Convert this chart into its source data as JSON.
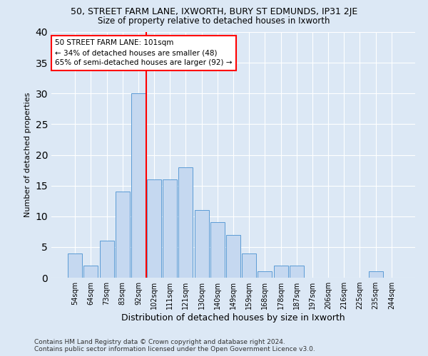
{
  "title_line1": "50, STREET FARM LANE, IXWORTH, BURY ST EDMUNDS, IP31 2JE",
  "title_line2": "Size of property relative to detached houses in Ixworth",
  "xlabel": "Distribution of detached houses by size in Ixworth",
  "ylabel": "Number of detached properties",
  "footnote": "Contains HM Land Registry data © Crown copyright and database right 2024.\nContains public sector information licensed under the Open Government Licence v3.0.",
  "categories": [
    "54sqm",
    "64sqm",
    "73sqm",
    "83sqm",
    "92sqm",
    "102sqm",
    "111sqm",
    "121sqm",
    "130sqm",
    "140sqm",
    "149sqm",
    "159sqm",
    "168sqm",
    "178sqm",
    "187sqm",
    "197sqm",
    "206sqm",
    "216sqm",
    "225sqm",
    "235sqm",
    "244sqm"
  ],
  "values": [
    4,
    2,
    6,
    14,
    30,
    16,
    16,
    18,
    11,
    9,
    7,
    4,
    1,
    2,
    2,
    0,
    0,
    0,
    0,
    1,
    0
  ],
  "bar_color": "#c5d8f0",
  "bar_edge_color": "#5b9bd5",
  "property_line_label": "50 STREET FARM LANE: 101sqm",
  "annotation_line2": "← 34% of detached houses are smaller (48)",
  "annotation_line3": "65% of semi-detached houses are larger (92) →",
  "annotation_box_color": "white",
  "annotation_box_edge_color": "red",
  "property_line_color": "red",
  "ylim": [
    0,
    40
  ],
  "yticks": [
    0,
    5,
    10,
    15,
    20,
    25,
    30,
    35,
    40
  ],
  "background_color": "#dce8f5",
  "grid_color": "white",
  "title_fontsize": 9,
  "subtitle_fontsize": 8.5,
  "xlabel_fontsize": 9,
  "ylabel_fontsize": 8,
  "tick_fontsize": 7,
  "footnote_fontsize": 6.5
}
